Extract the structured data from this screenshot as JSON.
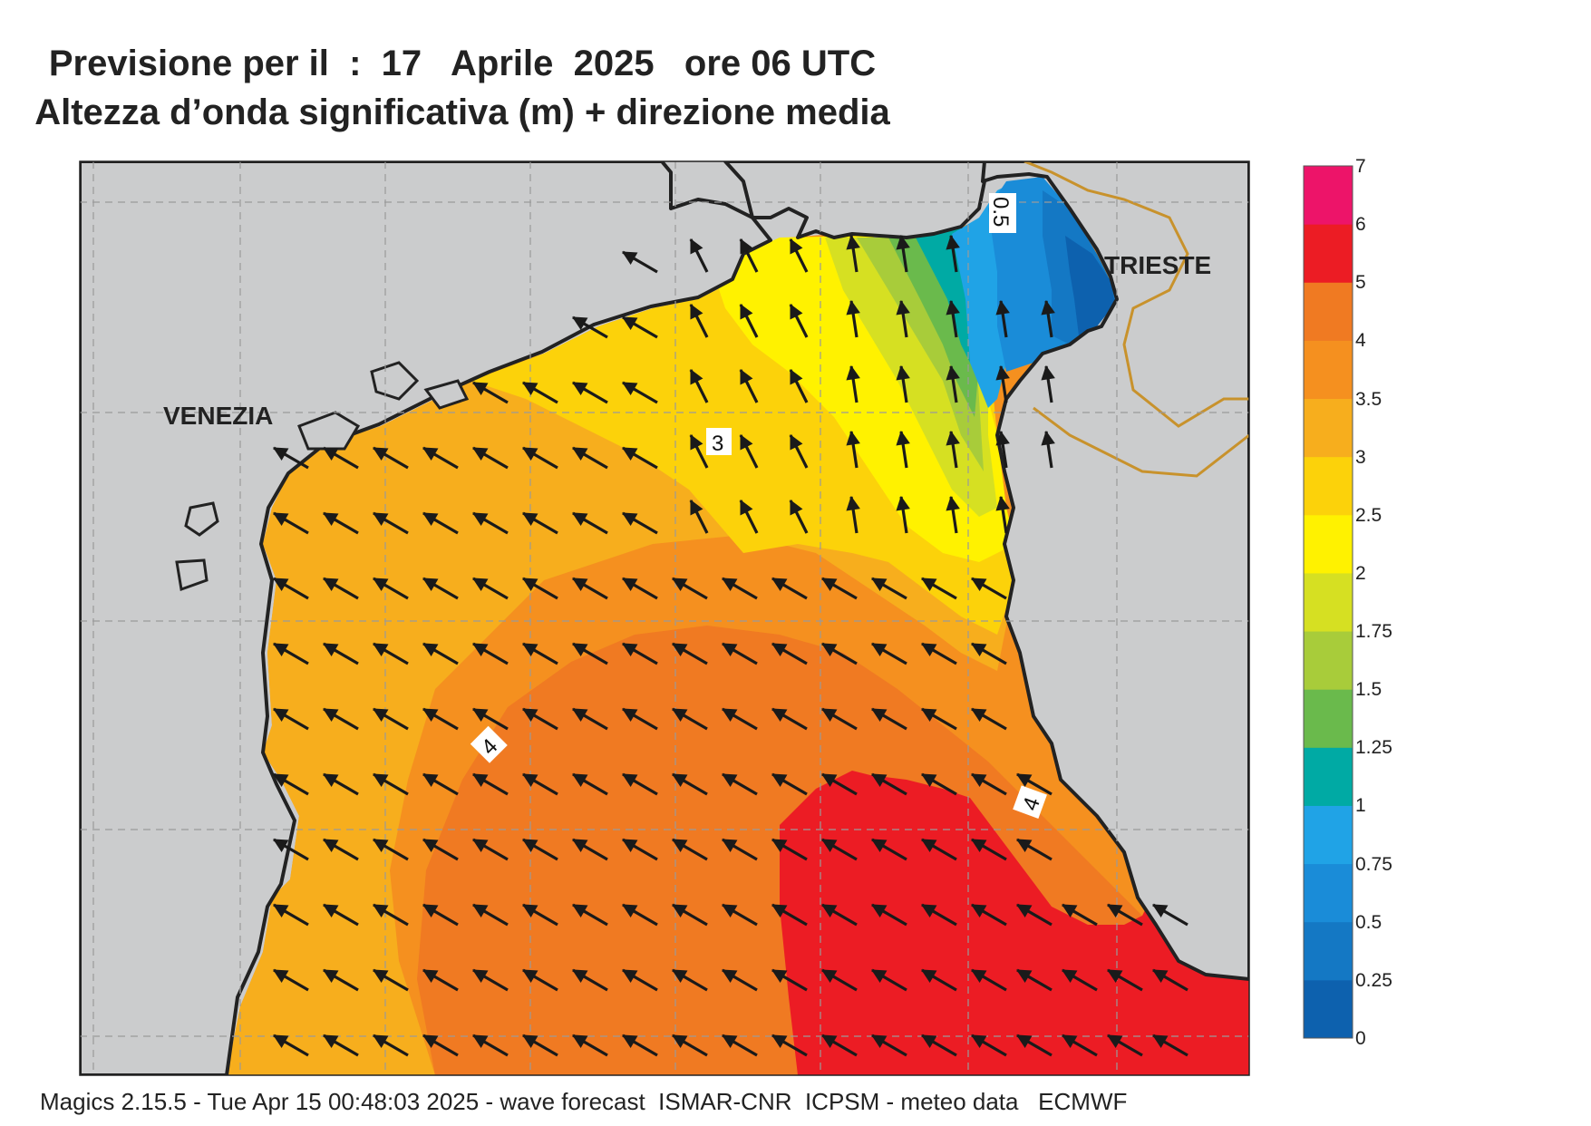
{
  "title_line1": "Previsione per il  :  17   Aprile  2025   ore 06 UTC",
  "title_line2": "Altezza d’onda significativa (m) + direzione media",
  "footer": "Magics 2.15.5 - Tue Apr 15 00:48:03 2025 - wave forecast  ISMAR-CNR  ICPSM - meteo data   ECMWF",
  "cities": {
    "venezia": "VENEZIA",
    "trieste": "TRIESTE"
  },
  "contour_labels": [
    "0.5",
    "3",
    "4",
    "4"
  ],
  "legend": {
    "tick_labels": [
      "7",
      "6",
      "5",
      "4",
      "3.5",
      "3",
      "2.5",
      "2",
      "1.75",
      "1.5",
      "1.25",
      "1",
      "0.75",
      "0.5",
      "0.25",
      "0"
    ],
    "bins": [
      {
        "range": "0–0.25",
        "color": "#0d61ae"
      },
      {
        "range": "0.25–0.5",
        "color": "#1478c4"
      },
      {
        "range": "0.5–0.75",
        "color": "#1a8cd8"
      },
      {
        "range": "0.75–1",
        "color": "#20a3e6"
      },
      {
        "range": "1–1.25",
        "color": "#00aaa4"
      },
      {
        "range": "1.25–1.5",
        "color": "#6aba4c"
      },
      {
        "range": "1.5–1.75",
        "color": "#a8cc3a"
      },
      {
        "range": "1.75–2",
        "color": "#d6e022"
      },
      {
        "range": "2–2.5",
        "color": "#fff200"
      },
      {
        "range": "2.5–3",
        "color": "#fcd20a"
      },
      {
        "range": "3–3.5",
        "color": "#f7ae1d"
      },
      {
        "range": "3.5–4",
        "color": "#f5901f"
      },
      {
        "range": "4–5",
        "color": "#f07a22"
      },
      {
        "range": "5–6",
        "color": "#ec1c24"
      },
      {
        "range": "6–7",
        "color": "#ed1469"
      }
    ]
  },
  "colors": {
    "land": "#cbcccd",
    "coast": "#222222",
    "border": "#c8922c",
    "grid": "#9a9a9a",
    "arrow": "#1a1a1a"
  }
}
